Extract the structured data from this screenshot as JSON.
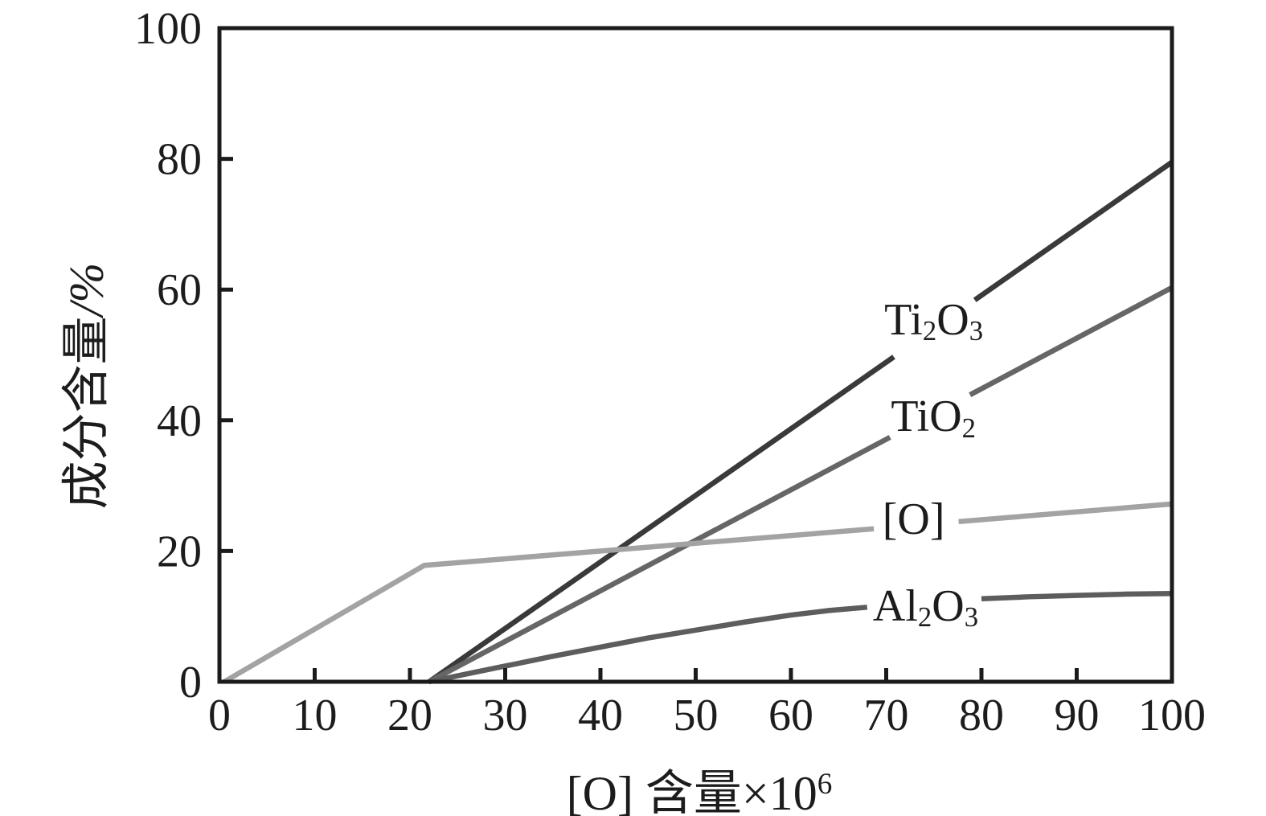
{
  "figure": {
    "background": "#ffffff",
    "axis_color": "#1b1b1b",
    "text_color": "#1c1c1c"
  },
  "chart_data": {
    "type": "line",
    "title": "",
    "xlabel": "[O] 含量×10⁶",
    "xlabel_parts": [
      [
        "[O] 含量×10",
        ""
      ],
      [
        "6",
        "sup"
      ]
    ],
    "ylabel": "成分含量/%",
    "ylabel_parts": [
      [
        "成分含量",
        ""
      ],
      [
        "/%",
        "italic"
      ]
    ],
    "xlim": [
      0,
      100
    ],
    "ylim": [
      0,
      100
    ],
    "x_ticks": [
      0,
      10,
      20,
      30,
      40,
      50,
      60,
      70,
      80,
      90,
      100
    ],
    "y_ticks": [
      0,
      20,
      40,
      60,
      80,
      100
    ],
    "grid": false,
    "frame": true,
    "legend_position": "inline-labels-right",
    "series": [
      {
        "name": "Ti2O3",
        "label": "Ti₂O₃",
        "label_parts": [
          [
            "Ti",
            ""
          ],
          [
            "2",
            "sub"
          ],
          [
            "O",
            ""
          ],
          [
            "3",
            "sub"
          ]
        ],
        "color": "#3a3a3a",
        "label_anchor": {
          "x": 69.8,
          "y": 55.4
        },
        "segments": [
          [
            [
              22,
              0
            ],
            [
              70.8,
              49.7
            ]
          ],
          [
            [
              79.3,
              58.4
            ],
            [
              100,
              79.5
            ]
          ]
        ]
      },
      {
        "name": "TiO2",
        "label": "TiO₂",
        "label_parts": [
          [
            "TiO",
            ""
          ],
          [
            "2",
            "sub"
          ]
        ],
        "color": "#666666",
        "label_anchor": {
          "x": 70.5,
          "y": 40.6
        },
        "segments": [
          [
            [
              22,
              0
            ],
            [
              70.4,
              37.4
            ]
          ],
          [
            [
              78.8,
              43.9
            ],
            [
              100,
              60.3
            ]
          ]
        ]
      },
      {
        "name": "O-dissolved",
        "label": "[O]",
        "label_parts": [
          [
            "[O]",
            ""
          ]
        ],
        "color": "#a3a3a3",
        "label_anchor": {
          "x": 69.6,
          "y": 24.8
        },
        "segments": [
          [
            [
              0.5,
              0
            ],
            [
              21.5,
              17.8
            ],
            [
              68.7,
              23.4
            ]
          ],
          [
            [
              77.6,
              24.5
            ],
            [
              100,
              27.2
            ]
          ]
        ]
      },
      {
        "name": "Al2O3",
        "label": "Al₂O₃",
        "label_parts": [
          [
            "Al",
            ""
          ],
          [
            "2",
            "sub"
          ],
          [
            "O",
            ""
          ],
          [
            "3",
            "sub"
          ]
        ],
        "color": "#5d5d5d",
        "label_anchor": {
          "x": 68.6,
          "y": 11.6
        },
        "segments": [
          [
            [
              22,
              0
            ],
            [
              26,
              1.2
            ],
            [
              30,
              2.4
            ],
            [
              35,
              3.9
            ],
            [
              40,
              5.3
            ],
            [
              45,
              6.7
            ],
            [
              50,
              7.9
            ],
            [
              55,
              9.1
            ],
            [
              60,
              10.2
            ],
            [
              64,
              10.9
            ],
            [
              68,
              11.4
            ]
          ],
          [
            [
              80,
              12.7
            ],
            [
              85,
              13.0
            ],
            [
              90,
              13.2
            ],
            [
              95,
              13.4
            ],
            [
              100,
              13.5
            ]
          ]
        ]
      }
    ]
  }
}
